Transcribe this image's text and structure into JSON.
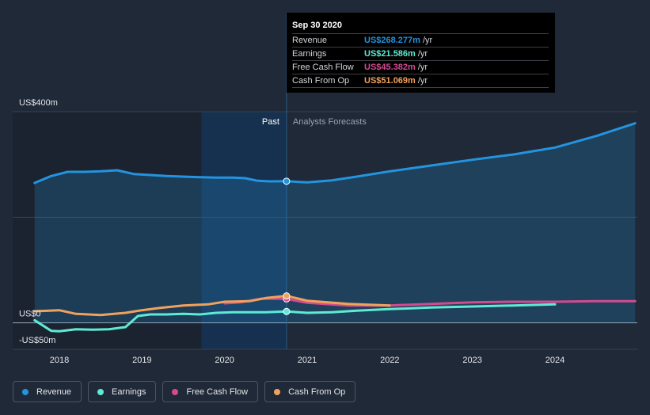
{
  "chart_data": {
    "type": "area",
    "y_axis": {
      "top_label": "US$400m",
      "zero_label": "US$0",
      "bottom_label": "-US$50m",
      "ylim": [
        -50,
        400
      ],
      "gridlines": [
        400,
        200,
        0,
        -50
      ]
    },
    "x_axis": {
      "ticks": [
        "2018",
        "2019",
        "2020",
        "2021",
        "2022",
        "2023",
        "2024"
      ],
      "xlim": [
        2017.7,
        2024.97
      ]
    },
    "regions": {
      "past_label": "Past",
      "forecast_label": "Analysts Forecasts",
      "divider_x": 2020.75,
      "highlight_start": 2019.72
    },
    "series": [
      {
        "name": "Revenue",
        "color": "#2394df",
        "fill": true,
        "points": [
          [
            2017.7,
            265
          ],
          [
            2017.9,
            278
          ],
          [
            2018.1,
            286
          ],
          [
            2018.3,
            286
          ],
          [
            2018.5,
            287
          ],
          [
            2018.7,
            289
          ],
          [
            2018.9,
            282
          ],
          [
            2019.1,
            280
          ],
          [
            2019.3,
            278
          ],
          [
            2019.5,
            277
          ],
          [
            2019.7,
            276
          ],
          [
            2019.9,
            275
          ],
          [
            2020.1,
            275
          ],
          [
            2020.25,
            274
          ],
          [
            2020.4,
            269
          ],
          [
            2020.55,
            268
          ],
          [
            2020.75,
            268.3
          ],
          [
            2021.0,
            266
          ],
          [
            2021.3,
            270
          ],
          [
            2021.6,
            277
          ],
          [
            2022.0,
            287
          ],
          [
            2022.5,
            298
          ],
          [
            2023.0,
            309
          ],
          [
            2023.5,
            319
          ],
          [
            2024.0,
            332
          ],
          [
            2024.5,
            354
          ],
          [
            2024.97,
            378
          ]
        ],
        "marker": [
          2020.75,
          268.277
        ]
      },
      {
        "name": "Earnings",
        "color": "#5eead4",
        "fill": false,
        "points": [
          [
            2017.7,
            5
          ],
          [
            2017.9,
            -15
          ],
          [
            2018.0,
            -16
          ],
          [
            2018.2,
            -12
          ],
          [
            2018.4,
            -13
          ],
          [
            2018.6,
            -12
          ],
          [
            2018.8,
            -8
          ],
          [
            2018.95,
            13
          ],
          [
            2019.1,
            16
          ],
          [
            2019.3,
            16
          ],
          [
            2019.5,
            17
          ],
          [
            2019.7,
            16
          ],
          [
            2019.9,
            19
          ],
          [
            2020.1,
            20
          ],
          [
            2020.3,
            20
          ],
          [
            2020.5,
            20
          ],
          [
            2020.75,
            21.586
          ],
          [
            2021.0,
            19
          ],
          [
            2021.3,
            20
          ],
          [
            2021.6,
            23
          ],
          [
            2022.0,
            26
          ],
          [
            2022.5,
            29
          ],
          [
            2023.0,
            31
          ],
          [
            2023.5,
            33
          ],
          [
            2024.0,
            35
          ]
        ],
        "marker": [
          2020.75,
          21.586
        ]
      },
      {
        "name": "Free Cash Flow",
        "color": "#d34b8f",
        "fill": false,
        "points": [
          [
            2020.0,
            37
          ],
          [
            2020.2,
            39
          ],
          [
            2020.45,
            46
          ],
          [
            2020.75,
            45.382
          ],
          [
            2021.0,
            38
          ],
          [
            2021.5,
            33
          ],
          [
            2022.0,
            33
          ],
          [
            2022.5,
            36
          ],
          [
            2023.0,
            39
          ],
          [
            2023.5,
            40
          ],
          [
            2024.0,
            40
          ],
          [
            2024.5,
            41
          ],
          [
            2024.97,
            41
          ]
        ],
        "marker": [
          2020.75,
          45.382
        ]
      },
      {
        "name": "Cash From Op",
        "color": "#f0a25c",
        "fill": false,
        "points": [
          [
            2017.7,
            22
          ],
          [
            2018.0,
            24
          ],
          [
            2018.2,
            17
          ],
          [
            2018.5,
            15
          ],
          [
            2018.8,
            19
          ],
          [
            2019.0,
            24
          ],
          [
            2019.2,
            28
          ],
          [
            2019.5,
            33
          ],
          [
            2019.8,
            35
          ],
          [
            2020.0,
            40
          ],
          [
            2020.3,
            41
          ],
          [
            2020.5,
            47
          ],
          [
            2020.75,
            51.069
          ],
          [
            2021.0,
            42
          ],
          [
            2021.5,
            36
          ],
          [
            2022.0,
            33
          ]
        ],
        "marker": [
          2020.75,
          51.069
        ]
      }
    ]
  },
  "tooltip": {
    "date": "Sep 30 2020",
    "rows": [
      {
        "label": "Revenue",
        "value": "US$268.277m",
        "unit": "/yr",
        "color": "#2394df"
      },
      {
        "label": "Earnings",
        "value": "US$21.586m",
        "unit": "/yr",
        "color": "#5eead4"
      },
      {
        "label": "Free Cash Flow",
        "value": "US$45.382m",
        "unit": "/yr",
        "color": "#d34b8f"
      },
      {
        "label": "Cash From Op",
        "value": "US$51.069m",
        "unit": "/yr",
        "color": "#f0a25c"
      }
    ]
  },
  "legend": [
    {
      "label": "Revenue",
      "color": "#2394df"
    },
    {
      "label": "Earnings",
      "color": "#5eead4"
    },
    {
      "label": "Free Cash Flow",
      "color": "#d34b8f"
    },
    {
      "label": "Cash From Op",
      "color": "#f0a25c"
    }
  ]
}
